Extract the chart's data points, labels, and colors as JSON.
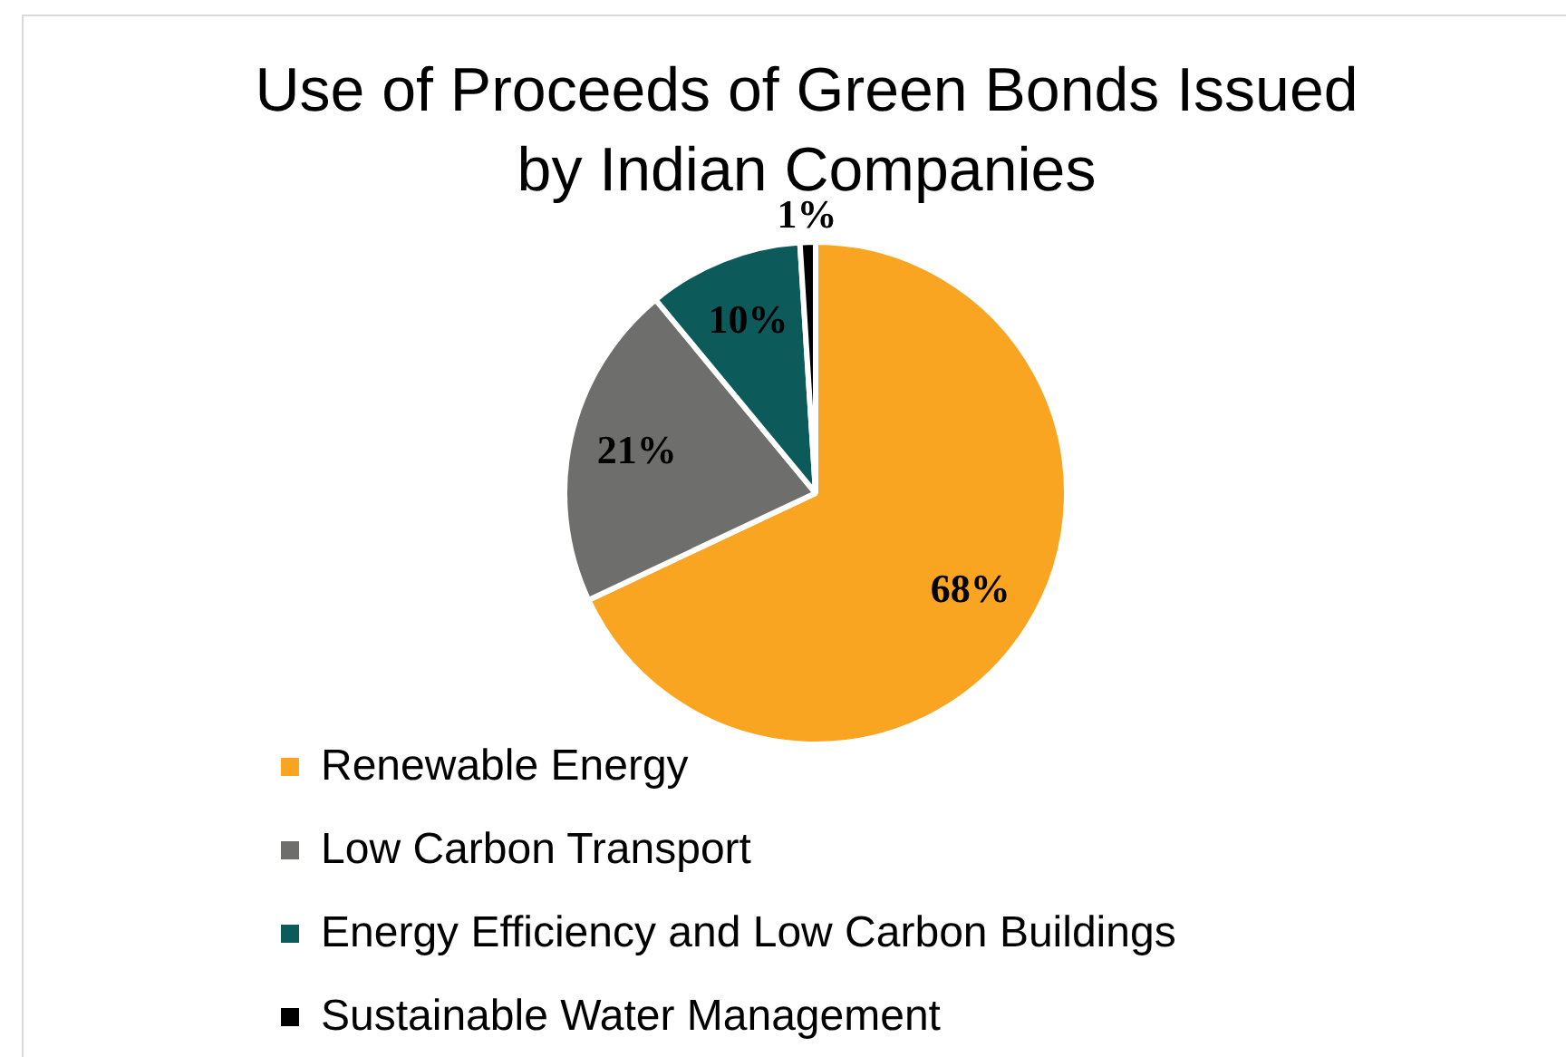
{
  "chart_data": {
    "type": "pie",
    "title": "Use of Proceeds of Green Bonds Issued by Indian Companies",
    "categories": [
      "Renewable Energy",
      "Low Carbon Transport",
      "Energy Efficiency and Low Carbon Buildings",
      "Sustainable Water Management"
    ],
    "values": [
      68,
      21,
      10,
      1
    ],
    "colors": [
      "#f9a521",
      "#6e6e6c",
      "#0d5a5b",
      "#000000"
    ],
    "value_labels": [
      "68%",
      "21%",
      "10%",
      "1%"
    ],
    "legend": "bottom"
  }
}
